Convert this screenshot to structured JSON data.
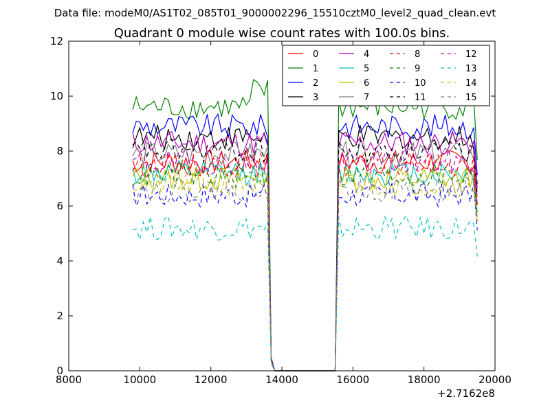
{
  "chart_data": {
    "type": "line",
    "suptitle": "Data file: modeM0/AS1T02_085T01_9000002296_15510cztM0_level2_quad_clean.evt",
    "title": "Quadrant 0 module wise count rates with 100.0s bins.",
    "xlabel": "",
    "ylabel": "",
    "x_offset_label": "+2.7162e8",
    "xlim": [
      8000,
      20000
    ],
    "ylim": [
      0,
      12
    ],
    "xticks": [
      8000,
      10000,
      12000,
      14000,
      16000,
      18000,
      20000
    ],
    "yticks": [
      0,
      2,
      4,
      6,
      8,
      10,
      12
    ],
    "grid": false,
    "legend": {
      "position": "top-right",
      "columns": 4
    },
    "x_segment_1": [
      9800,
      9900,
      10000,
      10100,
      10200,
      10300,
      10400,
      10500,
      10600,
      10700,
      10800,
      10900,
      11000,
      11100,
      11200,
      11300,
      11400,
      11500,
      11600,
      11700,
      11800,
      11900,
      12000,
      12100,
      12200,
      12300,
      12400,
      12500,
      12600,
      12700,
      12800,
      12900,
      13000,
      13100,
      13200,
      13300,
      13400,
      13500,
      13600,
      13700,
      13800,
      13900
    ],
    "x_gap": [
      14000,
      15400
    ],
    "x_segment_2": [
      15500,
      15600,
      15700,
      15800,
      15900,
      16000,
      16100,
      16200,
      16300,
      16400,
      16500,
      16600,
      16700,
      16800,
      16900,
      17000,
      17100,
      17200,
      17300,
      17400,
      17500,
      17600,
      17700,
      17800,
      17900,
      18000,
      18100,
      18200,
      18300,
      18400,
      18500,
      18600,
      18700,
      18800,
      18900,
      19000,
      19100,
      19200,
      19300,
      19400,
      19500
    ],
    "series": [
      {
        "name": "0",
        "color": "#ff0000",
        "dash": "solid",
        "level": 7.6
      },
      {
        "name": "1",
        "color": "#008000",
        "dash": "solid",
        "level": 9.6
      },
      {
        "name": "2",
        "color": "#0000ff",
        "dash": "solid",
        "level": 8.9
      },
      {
        "name": "3",
        "color": "#000000",
        "dash": "solid",
        "level": 8.5
      },
      {
        "name": "4",
        "color": "#bf00bf",
        "dash": "solid",
        "level": 8.3
      },
      {
        "name": "5",
        "color": "#00bfbf",
        "dash": "solid",
        "level": 7.2
      },
      {
        "name": "6",
        "color": "#bfbf00",
        "dash": "solid",
        "level": 7.0
      },
      {
        "name": "7",
        "color": "#808080",
        "dash": "solid",
        "level": 7.9
      },
      {
        "name": "8",
        "color": "#ff0000",
        "dash": "dashed",
        "level": 7.5
      },
      {
        "name": "9",
        "color": "#008000",
        "dash": "dashed",
        "level": 7.1
      },
      {
        "name": "10",
        "color": "#0000ff",
        "dash": "dashed",
        "level": 6.4
      },
      {
        "name": "11",
        "color": "#000000",
        "dash": "dashed",
        "level": 8.0
      },
      {
        "name": "12",
        "color": "#bf00bf",
        "dash": "dashed",
        "level": 7.6
      },
      {
        "name": "13",
        "color": "#00bfbf",
        "dash": "dashed",
        "level": 5.2
      },
      {
        "name": "14",
        "color": "#bfbf00",
        "dash": "dashed",
        "level": 6.8
      },
      {
        "name": "15",
        "color": "#808080",
        "dash": "dashed",
        "level": 6.6
      }
    ]
  }
}
